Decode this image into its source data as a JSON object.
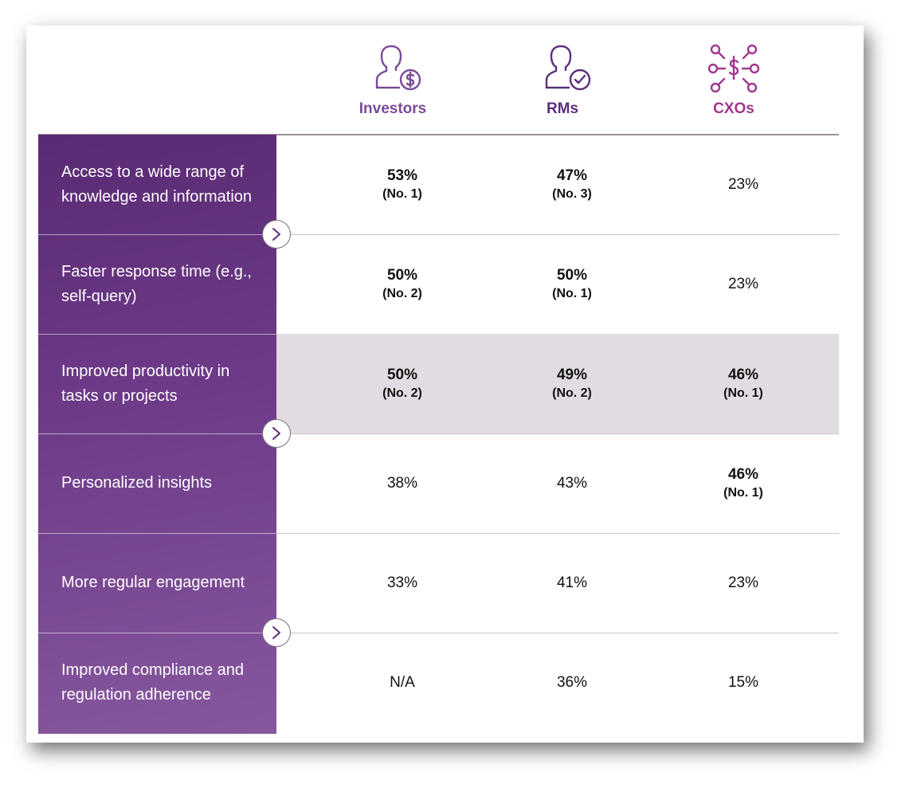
{
  "colors": {
    "investors": "#7b4a9a",
    "rms": "#5a2f7c",
    "cxos": "#a0368e",
    "sidebar": "#6e3b88",
    "highlight_row": "#e3dbe3"
  },
  "chart_data": {
    "type": "table",
    "columns": [
      {
        "key": "investors",
        "label": "Investors",
        "icon": "investor-dollar-icon"
      },
      {
        "key": "rms",
        "label": "RMs",
        "icon": "rm-check-icon"
      },
      {
        "key": "cxos",
        "label": "CXOs",
        "icon": "cxo-network-dollar-icon"
      }
    ],
    "rows": [
      {
        "label": "Access to a wide range of knowledge and information",
        "highlight": false,
        "cells": [
          {
            "value": "53%",
            "rank": "(No. 1)",
            "bold": true
          },
          {
            "value": "47%",
            "rank": "(No. 3)",
            "bold": true
          },
          {
            "value": "23%",
            "rank": "",
            "bold": false
          }
        ]
      },
      {
        "label": "Faster response time (e.g., self-query)",
        "highlight": false,
        "cells": [
          {
            "value": "50%",
            "rank": "(No. 2)",
            "bold": true
          },
          {
            "value": "50%",
            "rank": "(No. 1)",
            "bold": true
          },
          {
            "value": "23%",
            "rank": "",
            "bold": false
          }
        ]
      },
      {
        "label": "Improved productivity in tasks or projects",
        "highlight": true,
        "cells": [
          {
            "value": "50%",
            "rank": "(No. 2)",
            "bold": true
          },
          {
            "value": "49%",
            "rank": "(No. 2)",
            "bold": true
          },
          {
            "value": "46%",
            "rank": "(No. 1)",
            "bold": true
          }
        ]
      },
      {
        "label": "Personalized insights",
        "highlight": false,
        "cells": [
          {
            "value": "38%",
            "rank": "",
            "bold": false
          },
          {
            "value": "43%",
            "rank": "",
            "bold": false
          },
          {
            "value": "46%",
            "rank": "(No. 1)",
            "bold": true
          }
        ]
      },
      {
        "label": "More regular engagement",
        "highlight": false,
        "cells": [
          {
            "value": "33%",
            "rank": "",
            "bold": false
          },
          {
            "value": "41%",
            "rank": "",
            "bold": false
          },
          {
            "value": "23%",
            "rank": "",
            "bold": false
          }
        ]
      },
      {
        "label": "Improved compliance and regulation adherence",
        "highlight": false,
        "cells": [
          {
            "value": "N/A",
            "rank": "",
            "bold": false
          },
          {
            "value": "36%",
            "rank": "",
            "bold": false
          },
          {
            "value": "15%",
            "rank": "",
            "bold": false
          }
        ]
      }
    ],
    "chevron_icon": "chevron-right-icon"
  }
}
